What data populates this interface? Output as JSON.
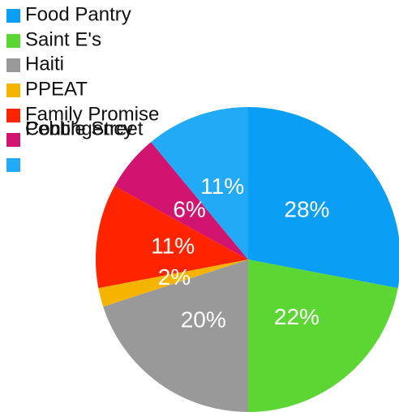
{
  "chart_data": {
    "type": "pie",
    "categories": [
      "Food Pantry",
      "Saint E's",
      "Haiti",
      "PPEAT",
      "Family Promise",
      "Pebble Street",
      "Contingency"
    ],
    "values": [
      28,
      22,
      20,
      2,
      11,
      6,
      11
    ],
    "value_labels": [
      "28%",
      "22%",
      "20%",
      "2%",
      "11%",
      "6%",
      "11%"
    ],
    "colors": [
      "#0a9ff5",
      "#5cd633",
      "#999999",
      "#f5b400",
      "#ff2400",
      "#d0146f",
      "#22aaf7"
    ]
  }
}
